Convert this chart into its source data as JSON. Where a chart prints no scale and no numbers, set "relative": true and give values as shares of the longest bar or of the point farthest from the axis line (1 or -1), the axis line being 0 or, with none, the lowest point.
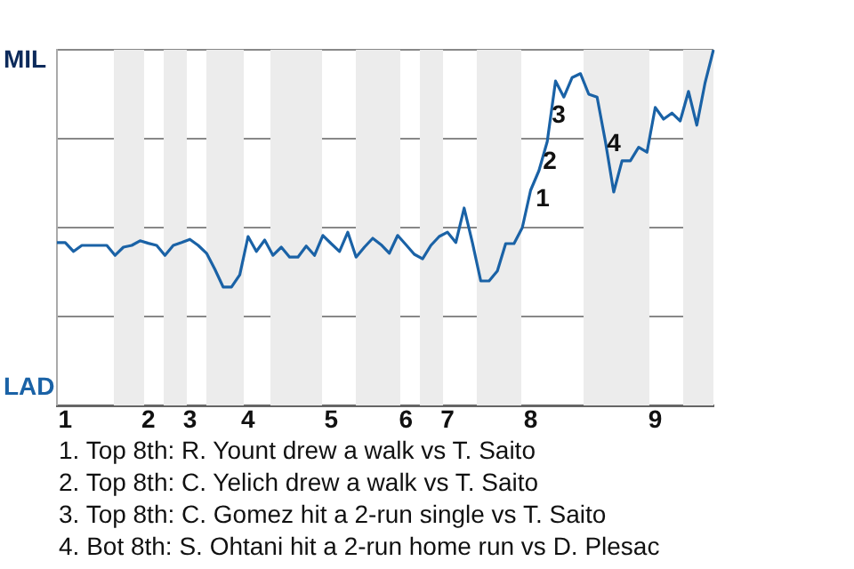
{
  "chart_data": {
    "type": "line",
    "relative": true,
    "categories": [
      null,
      "1",
      null,
      null,
      null,
      null,
      null,
      null,
      null,
      null,
      null,
      "2",
      null,
      null,
      null,
      null,
      "3",
      null,
      null,
      null,
      null,
      null,
      null,
      "4",
      null,
      null,
      null,
      null,
      null,
      null,
      null,
      null,
      null,
      "5",
      null,
      null,
      null,
      null,
      null,
      null,
      null,
      null,
      "6",
      null,
      null,
      null,
      null,
      "7",
      null,
      null,
      null,
      null,
      null,
      null,
      null,
      null,
      null,
      "8",
      null,
      null,
      null,
      null,
      null,
      null,
      null,
      null,
      null,
      null,
      null,
      null,
      null,
      null,
      "9",
      null,
      null,
      null,
      null,
      null,
      null,
      null
    ],
    "series": [
      {
        "color": "#1a62a6",
        "values": [
          0.458,
          0.458,
          0.433,
          0.45,
          0.45,
          0.45,
          0.45,
          0.422,
          0.445,
          0.45,
          0.463,
          0.456,
          0.45,
          0.422,
          0.45,
          0.458,
          0.467,
          0.45,
          0.428,
          0.383,
          0.333,
          0.333,
          0.367,
          0.475,
          0.433,
          0.465,
          0.422,
          0.445,
          0.417,
          0.417,
          0.448,
          0.422,
          0.478,
          0.455,
          0.433,
          0.487,
          0.417,
          0.445,
          0.47,
          0.452,
          0.428,
          0.478,
          0.452,
          0.425,
          0.412,
          0.45,
          0.475,
          0.487,
          0.458,
          0.555,
          0.457,
          0.35,
          0.35,
          0.378,
          0.455,
          0.455,
          0.5,
          0.605,
          0.66,
          0.742,
          0.912,
          0.867,
          0.922,
          0.933,
          0.875,
          0.867,
          0.742,
          0.6,
          0.688,
          0.688,
          0.726,
          0.712,
          0.838,
          0.805,
          0.822,
          0.8,
          0.883,
          0.788,
          0.908,
          1
        ]
      }
    ],
    "grid": "y",
    "legend": false,
    "marker": "none",
    "line_style": "solid",
    "annotations": [
      "MIL",
      "LAD",
      "1",
      "2",
      "3",
      "4",
      "1. Top 8th: R. Yount drew a walk vs T. Saito",
      "2. Top 8th: C. Yelich drew a walk vs T. Saito",
      "3. Top 8th: C. Gomez hit a 2-run single vs T. Saito",
      "4. Bot 8th: S. Ohtani hit a 2-run home run vs D. Plesac"
    ]
  }
}
